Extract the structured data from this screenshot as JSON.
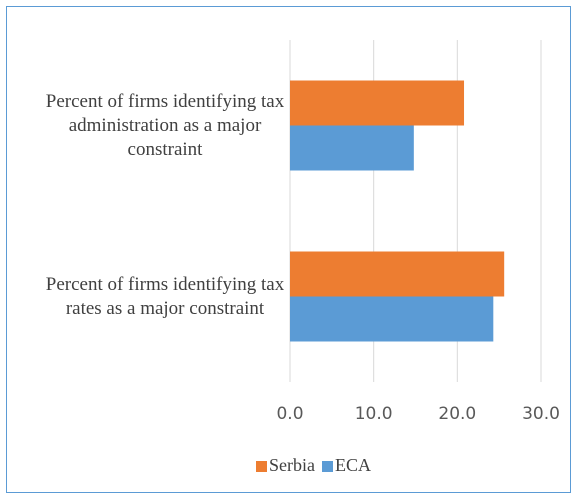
{
  "chart_data": {
    "type": "hbar",
    "categories": [
      "Percent of firms identifying tax administration as a major constraint",
      "Percent of firms identifying tax rates as a major constraint"
    ],
    "series": [
      {
        "name": "Serbia",
        "color": "#ed7d31",
        "values": [
          20.8,
          25.6
        ]
      },
      {
        "name": "ECA",
        "color": "#5b9bd5",
        "values": [
          14.8,
          24.3
        ]
      }
    ],
    "xlim": [
      0,
      30
    ],
    "xticks": [
      {
        "value": 0,
        "label": "0.0"
      },
      {
        "value": 10,
        "label": "10.0"
      },
      {
        "value": 20,
        "label": "20.0"
      },
      {
        "value": 30,
        "label": "30.0"
      }
    ],
    "grid": true,
    "legend": "bottom"
  }
}
